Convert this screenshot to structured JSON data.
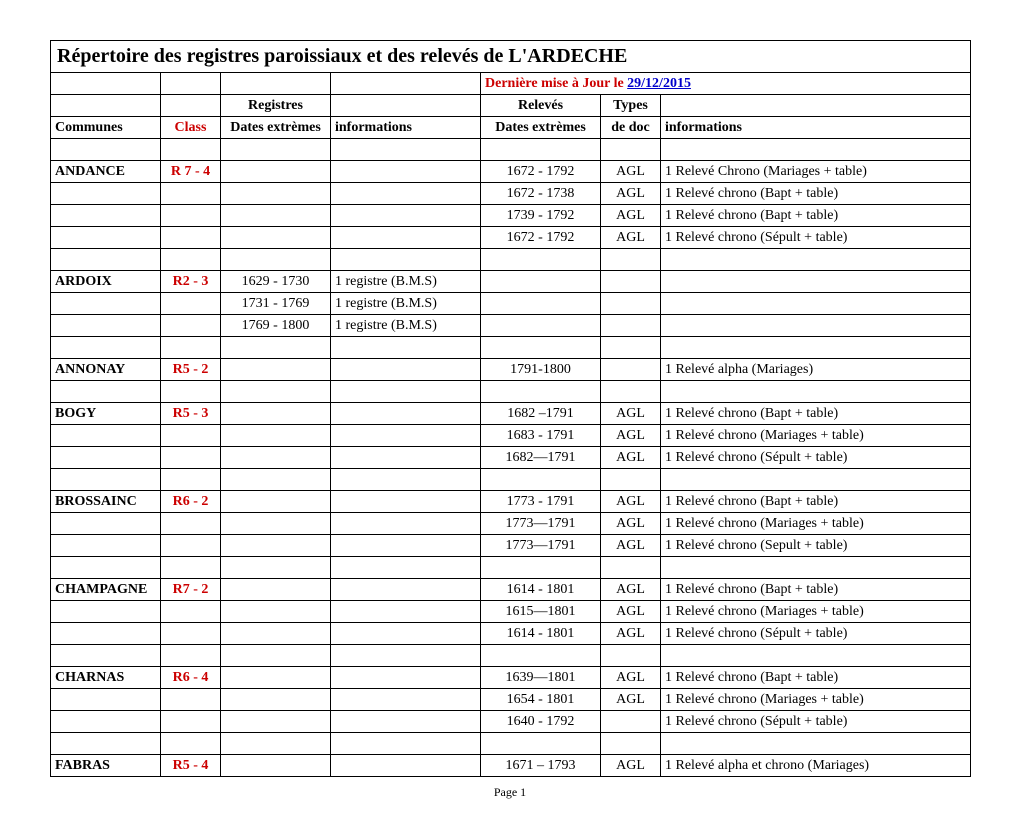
{
  "title": "Répertoire des registres paroissiaux et des relevés de L'ARDECHE",
  "update_prefix": "Dernière mise à Jour le ",
  "update_date": "29/12/2015",
  "group_headers": {
    "registres": "Registres",
    "releves": "Relevés",
    "types": "Types"
  },
  "col_headers": {
    "communes": "Communes",
    "class": "Class",
    "dates1": "Dates extrèmes",
    "info1": "informations",
    "dates2": "Dates extrèmes",
    "dedoc": "de doc",
    "info2": "informations"
  },
  "rows": [
    {
      "blank": true
    },
    {
      "c1": "ANDANCE",
      "c2": "R 7 - 4",
      "c3": "",
      "c4": "",
      "c5": "1672 - 1792",
      "c6": "AGL",
      "c7": "1 Relevé Chrono (Mariages + table)"
    },
    {
      "c1": "",
      "c2": "",
      "c3": "",
      "c4": "",
      "c5": "1672 - 1738",
      "c6": "AGL",
      "c7": "1 Relevé chrono (Bapt + table)"
    },
    {
      "c1": "",
      "c2": "",
      "c3": "",
      "c4": "",
      "c5": "1739 - 1792",
      "c6": "AGL",
      "c7": "1 Relevé chrono (Bapt + table)"
    },
    {
      "c1": "",
      "c2": "",
      "c3": "",
      "c4": "",
      "c5": "1672 - 1792",
      "c6": "AGL",
      "c7": "1 Relevé chrono (Sépult + table)"
    },
    {
      "blank": true
    },
    {
      "c1": "ARDOIX",
      "c2": "R2 - 3",
      "c3": "1629 - 1730",
      "c4": "1 registre (B.M.S)",
      "c5": "",
      "c6": "",
      "c7": ""
    },
    {
      "c1": "",
      "c2": "",
      "c3": "1731 -  1769",
      "c4": "1 registre (B.M.S)",
      "c5": "",
      "c6": "",
      "c7": ""
    },
    {
      "c1": "",
      "c2": "",
      "c3": "1769 - 1800",
      "c4": "1 registre (B.M.S)",
      "c5": "",
      "c6": "",
      "c7": ""
    },
    {
      "blank": true
    },
    {
      "c1": "ANNONAY",
      "c2": "R5 - 2",
      "c3": "",
      "c4": "",
      "c5": "1791-1800",
      "c6": "",
      "c7": "1 Relevé alpha (Mariages)"
    },
    {
      "blank": true
    },
    {
      "c1": "BOGY",
      "c2": "R5 - 3",
      "c3": "",
      "c4": "",
      "c5": "1682 –1791",
      "c6": "AGL",
      "c7": "1 Relevé chrono (Bapt + table)"
    },
    {
      "c1": "",
      "c2": "",
      "c3": "",
      "c4": "",
      "c5": "1683 - 1791",
      "c6": "AGL",
      "c7": "1 Relevé chrono (Mariages + table)"
    },
    {
      "c1": "",
      "c2": "",
      "c3": "",
      "c4": "",
      "c5": "1682—1791",
      "c6": "AGL",
      "c7": "1 Relevé chrono (Sépult + table)"
    },
    {
      "blank": true
    },
    {
      "c1": "BROSSAINC",
      "c2": "R6 - 2",
      "c3": "",
      "c4": "",
      "c5": "1773 - 1791",
      "c6": "AGL",
      "c7": "1 Relevé chrono (Bapt + table)"
    },
    {
      "c1": "",
      "c2": "",
      "c3": "",
      "c4": "",
      "c5": "1773—1791",
      "c6": "AGL",
      "c7": "1 Relevé chrono (Mariages + table)"
    },
    {
      "c1": "",
      "c2": "",
      "c3": "",
      "c4": "",
      "c5": "1773—1791",
      "c6": "AGL",
      "c7": "1 Relevé chrono (Sepult + table)"
    },
    {
      "blank": true
    },
    {
      "c1": "CHAMPAGNE",
      "c2": "R7 - 2",
      "c3": "",
      "c4": "",
      "c5": "1614 - 1801",
      "c6": "AGL",
      "c7": "1 Relevé chrono (Bapt + table)"
    },
    {
      "c1": "",
      "c2": "",
      "c3": "",
      "c4": "",
      "c5": "1615—1801",
      "c6": "AGL",
      "c7": "1 Relevé chrono (Mariages + table)"
    },
    {
      "c1": "",
      "c2": "",
      "c3": "",
      "c4": "",
      "c5": "1614 - 1801",
      "c6": "AGL",
      "c7": "1 Relevé chrono (Sépult + table)"
    },
    {
      "blank": true
    },
    {
      "c1": "CHARNAS",
      "c2": "R6 - 4",
      "c3": "",
      "c4": "",
      "c5": "1639—1801",
      "c6": "AGL",
      "c7": "1 Relevé chrono (Bapt + table)"
    },
    {
      "c1": "",
      "c2": "",
      "c3": "",
      "c4": "",
      "c5": "1654 - 1801",
      "c6": "AGL",
      "c7": "1 Relevé chrono (Mariages + table)"
    },
    {
      "c1": "",
      "c2": "",
      "c3": "",
      "c4": "",
      "c5": "1640 - 1792",
      "c6": "",
      "c7": "1 Relevé chrono (Sépult + table)"
    },
    {
      "blank": true
    },
    {
      "c1": "FABRAS",
      "c2": "R5 - 4",
      "c3": "",
      "c4": "",
      "c5": "1671 – 1793",
      "c6": "AGL",
      "c7": "1 Relevé alpha et chrono (Mariages)"
    }
  ],
  "footer": "Page 1"
}
